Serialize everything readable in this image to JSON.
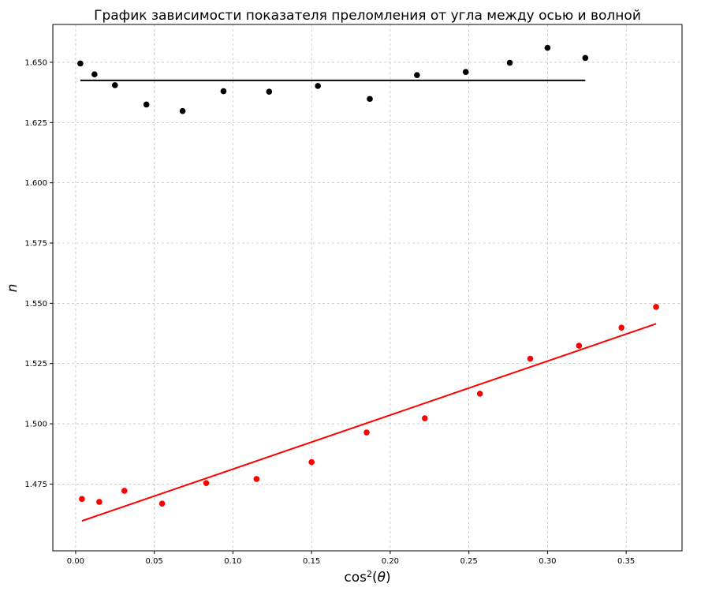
{
  "chart_data": {
    "type": "scatter",
    "title": "График зависимости показателя преломления от угла между осью и волной",
    "xlabel": "cos²(θ)",
    "ylabel": "n",
    "xlim": [
      -0.0145,
      0.3855
    ],
    "ylim": [
      1.4473,
      1.6657
    ],
    "grid": true,
    "xticks": [
      "0.00",
      "0.05",
      "0.10",
      "0.15",
      "0.20",
      "0.25",
      "0.30",
      "0.35"
    ],
    "yticks": [
      "1.475",
      "1.500",
      "1.525",
      "1.550",
      "1.575",
      "1.600",
      "1.625",
      "1.650"
    ],
    "series": [
      {
        "color": "#000000",
        "points": [
          {
            "x": 0.003,
            "y": 1.6495
          },
          {
            "x": 0.012,
            "y": 1.645
          },
          {
            "x": 0.025,
            "y": 1.6405
          },
          {
            "x": 0.045,
            "y": 1.6325
          },
          {
            "x": 0.068,
            "y": 1.6298
          },
          {
            "x": 0.094,
            "y": 1.638
          },
          {
            "x": 0.123,
            "y": 1.6378
          },
          {
            "x": 0.154,
            "y": 1.6402
          },
          {
            "x": 0.187,
            "y": 1.6348
          },
          {
            "x": 0.217,
            "y": 1.6447
          },
          {
            "x": 0.248,
            "y": 1.646
          },
          {
            "x": 0.276,
            "y": 1.6498
          },
          {
            "x": 0.3,
            "y": 1.656
          },
          {
            "x": 0.324,
            "y": 1.6518
          }
        ],
        "fit": {
          "x": [
            0.003,
            0.324
          ],
          "y": [
            1.6425,
            1.6425
          ]
        }
      },
      {
        "color": "#ff0000",
        "points": [
          {
            "x": 0.004,
            "y": 1.4688
          },
          {
            "x": 0.015,
            "y": 1.4676
          },
          {
            "x": 0.031,
            "y": 1.4722
          },
          {
            "x": 0.055,
            "y": 1.4669
          },
          {
            "x": 0.083,
            "y": 1.4754
          },
          {
            "x": 0.115,
            "y": 1.4771
          },
          {
            "x": 0.15,
            "y": 1.4841
          },
          {
            "x": 0.185,
            "y": 1.4964
          },
          {
            "x": 0.222,
            "y": 1.5023
          },
          {
            "x": 0.257,
            "y": 1.5125
          },
          {
            "x": 0.289,
            "y": 1.527
          },
          {
            "x": 0.32,
            "y": 1.5324
          },
          {
            "x": 0.347,
            "y": 1.5399
          },
          {
            "x": 0.369,
            "y": 1.5485
          }
        ],
        "fit": {
          "x": [
            0.004,
            0.369
          ],
          "y": [
            1.4597,
            1.5415
          ]
        }
      }
    ]
  }
}
